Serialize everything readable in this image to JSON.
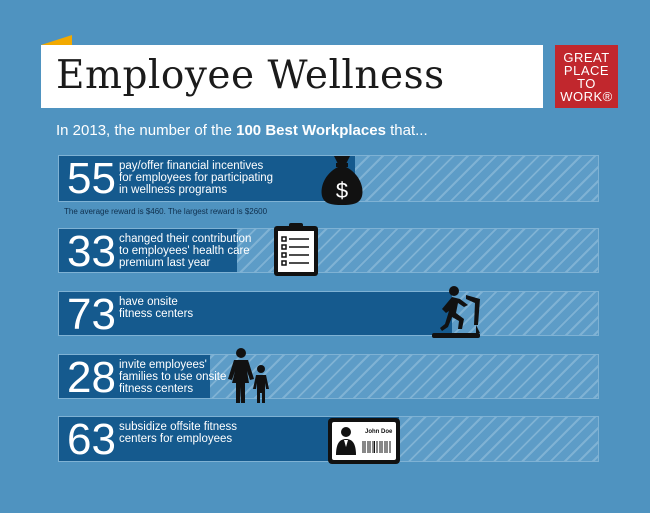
{
  "header": {
    "title": "Employee Wellness",
    "accent_color": "#f2a900"
  },
  "logo": {
    "lines": [
      "GREAT",
      "PLACE",
      "TO",
      "WORK®"
    ],
    "color": "#c1272d"
  },
  "intro": {
    "prefix": "In 2013, the number of the ",
    "bold": "100 Best Workplaces",
    "suffix": " that..."
  },
  "stats": [
    {
      "value": "55",
      "percent": 55,
      "text": "pay/offer financial incentives\nfor employees for participating\nin wellness programs",
      "icon": "money-bag-icon"
    },
    {
      "value": "33",
      "percent": 33,
      "text": "changed their contribution\nto employees' health care\npremium last year",
      "icon": "clipboard-icon"
    },
    {
      "value": "73",
      "percent": 73,
      "text": "have onsite\nfitness centers",
      "icon": "treadmill-icon"
    },
    {
      "value": "28",
      "percent": 28,
      "text": "invite employees'\nfamilies to use onsite\nfitness centers",
      "icon": "family-icon"
    },
    {
      "value": "63",
      "percent": 63,
      "text": "subsidize offsite fitness\ncenters for employees",
      "icon": "id-card-icon"
    }
  ],
  "note": "The average reward is $460. The largest reward is $2600",
  "id_card": {
    "name": "John Doe"
  }
}
